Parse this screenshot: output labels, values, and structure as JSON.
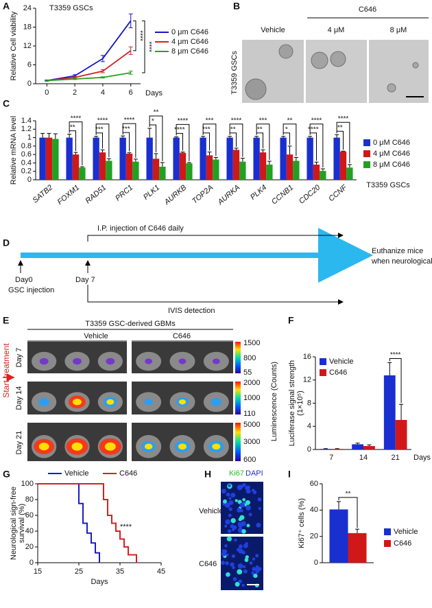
{
  "chart_data": [
    {
      "panel": "A",
      "type": "line",
      "title": "T3359 GSCs",
      "x_label": "Days",
      "y_label": "Relative Cell viability",
      "x": [
        0,
        2,
        4,
        6
      ],
      "xlim": [
        -0.8,
        6.7
      ],
      "xticks": [
        0,
        2,
        4,
        6
      ],
      "ylim": [
        0,
        24
      ],
      "yticks": [
        0,
        6,
        12,
        18,
        24
      ],
      "series": [
        {
          "name": "0 μm C646",
          "color": "#1414c8",
          "values": [
            1,
            2.5,
            8,
            20
          ],
          "errors": [
            0.2,
            0.4,
            1,
            2.2
          ]
        },
        {
          "name": "4 μm C646",
          "color": "#d42020",
          "values": [
            1,
            2,
            4,
            10.5
          ],
          "errors": [
            0.1,
            0.3,
            0.5,
            1.2
          ]
        },
        {
          "name": "8 μm C646",
          "color": "#22a022",
          "values": [
            1,
            1.5,
            2,
            3.5
          ],
          "errors": [
            0.1,
            0.2,
            0.2,
            0.5
          ]
        }
      ],
      "annotations": [
        "****",
        "****"
      ]
    },
    {
      "panel": "C",
      "type": "bar",
      "y_label": "Relative mRNA level",
      "subtitle": "T3359 GSCs",
      "categories": [
        "SATB2",
        "FOXM1",
        "RAD51",
        "PRC1",
        "PLK1",
        "AURKB",
        "TOP2A",
        "AURKA",
        "PLK4",
        "CCNB1",
        "CDC20",
        "CCNF"
      ],
      "ylim": [
        0,
        1.4
      ],
      "yticks": [
        0,
        0.2,
        0.4,
        0.6,
        0.8,
        1,
        1.2,
        1.4
      ],
      "series": [
        {
          "name": "0 μM C646",
          "color": "#1a2fd0",
          "values": [
            1,
            1,
            1,
            1,
            1,
            1,
            1,
            1,
            1,
            1,
            1,
            1
          ],
          "errors": [
            0.1,
            0.08,
            0.03,
            0.04,
            0.22,
            0.02,
            0.03,
            0.03,
            0.03,
            0.03,
            0.03,
            0.07
          ]
        },
        {
          "name": "4 μM C646",
          "color": "#d01818",
          "values": [
            1,
            0.6,
            0.65,
            0.62,
            0.5,
            0.64,
            0.58,
            0.71,
            0.65,
            0.6,
            0.36,
            0.67
          ],
          "errors": [
            0.1,
            0.05,
            0.06,
            0.02,
            0.12,
            0.02,
            0.08,
            0.04,
            0.06,
            0.2,
            0.06,
            0.01
          ]
        },
        {
          "name": "8 μM C646",
          "color": "#22a022",
          "values": [
            0.97,
            0.29,
            0.45,
            0.43,
            0.31,
            0.39,
            0.48,
            0.43,
            0.36,
            0.45,
            0.21,
            0.29
          ],
          "errors": [
            0.12,
            0.02,
            0.05,
            0.06,
            0.1,
            0.02,
            0.05,
            0.08,
            0.08,
            0.08,
            0.05,
            0.07
          ]
        }
      ],
      "significance_4": [
        null,
        "**",
        "***",
        "***",
        "*",
        "****",
        "***",
        "**",
        "**",
        "*",
        "****",
        "**"
      ],
      "significance_8": [
        null,
        "****",
        "****",
        "****",
        "**",
        "****",
        "***",
        "****",
        "***",
        "**",
        "****",
        "****"
      ]
    },
    {
      "panel": "F",
      "type": "bar",
      "x_label": "Days",
      "y_label": [
        "Luciferase signal strength",
        "(1×10⁵)"
      ],
      "categories": [
        "7",
        "14",
        "21"
      ],
      "ylim": [
        0,
        16
      ],
      "yticks": [
        0,
        4,
        8,
        12,
        16
      ],
      "series": [
        {
          "name": "Vehicle",
          "color": "#1a2fd0",
          "values": [
            0.1,
            0.9,
            12.8
          ],
          "errors": [
            0.05,
            0.2,
            2.2
          ]
        },
        {
          "name": "C646",
          "color": "#d01818",
          "values": [
            0.1,
            0.6,
            5.1
          ],
          "errors": [
            0.05,
            0.2,
            2.7
          ]
        }
      ],
      "annotations": [
        "****"
      ]
    },
    {
      "panel": "G",
      "type": "step",
      "x_label": "Days",
      "y_label": [
        "Neurological sign-free",
        "survival (%)"
      ],
      "xlim": [
        15,
        45
      ],
      "xticks": [
        15,
        25,
        35,
        45
      ],
      "ylim": [
        0,
        100
      ],
      "yticks": [
        0,
        20,
        40,
        60,
        80,
        100
      ],
      "series": [
        {
          "name": "Vehicle",
          "color": "#1a1acc",
          "x": [
            15,
            25,
            25,
            26,
            26,
            27,
            27,
            28,
            28,
            29,
            29,
            30,
            30
          ],
          "values": [
            100,
            100,
            75,
            75,
            50,
            50,
            37.5,
            37.5,
            25,
            25,
            12.5,
            12.5,
            0
          ]
        },
        {
          "name": "C646",
          "color": "#d42020",
          "x": [
            15,
            31,
            31,
            32,
            32,
            33,
            33,
            34,
            34,
            35,
            35,
            36,
            36,
            37,
            37,
            39,
            39
          ],
          "values": [
            100,
            100,
            80,
            80,
            60,
            60,
            50,
            50,
            40,
            40,
            30,
            30,
            20,
            20,
            10,
            10,
            0
          ]
        }
      ],
      "annotations": [
        "****"
      ]
    },
    {
      "panel": "I",
      "type": "bar",
      "y_label": "Ki67⁺ cells (%)",
      "categories": [
        null
      ],
      "ylim": [
        0,
        60
      ],
      "yticks": [
        0,
        20,
        40,
        60
      ],
      "series": [
        {
          "name": "Vehicle",
          "color": "#1a2fd0",
          "values": [
            40.5
          ],
          "errors": [
            6
          ]
        },
        {
          "name": "C646",
          "color": "#d01818",
          "values": [
            22.5
          ],
          "errors": [
            3
          ]
        }
      ],
      "annotations": [
        "**"
      ]
    }
  ],
  "panel_b": {
    "panel": "B",
    "group": "C646",
    "columns": [
      "Vehicle",
      "4 μM",
      "8 μM"
    ],
    "row_label": "T3359 GSCs"
  },
  "panel_d": {
    "panel": "D",
    "treatment": "I.P. injection of C646 daily",
    "end": [
      "Euthanize mice",
      "when neurological signs occur"
    ],
    "start": "Day0",
    "start_event": "GSC injection",
    "day7": "Day 7",
    "imaging": "IVIS detection"
  },
  "panel_e": {
    "panel": "E",
    "title": "T3359 GSC-derived GBMs",
    "columns": [
      "Vehicle",
      "C646"
    ],
    "rows": [
      "Day 7",
      "Day 14",
      "Day 21"
    ],
    "marker": "Start treatment",
    "colorbars": [
      [
        1500,
        800,
        55
      ],
      [
        2000,
        1000,
        110
      ],
      [
        5000,
        3000,
        600
      ]
    ],
    "colorbar_label": "Luminescence (Counts)"
  },
  "panel_h": {
    "panel": "H",
    "stain_1": "Ki67",
    "stain_2": "DAPI",
    "rows": [
      "Vehicle",
      "C646"
    ]
  }
}
